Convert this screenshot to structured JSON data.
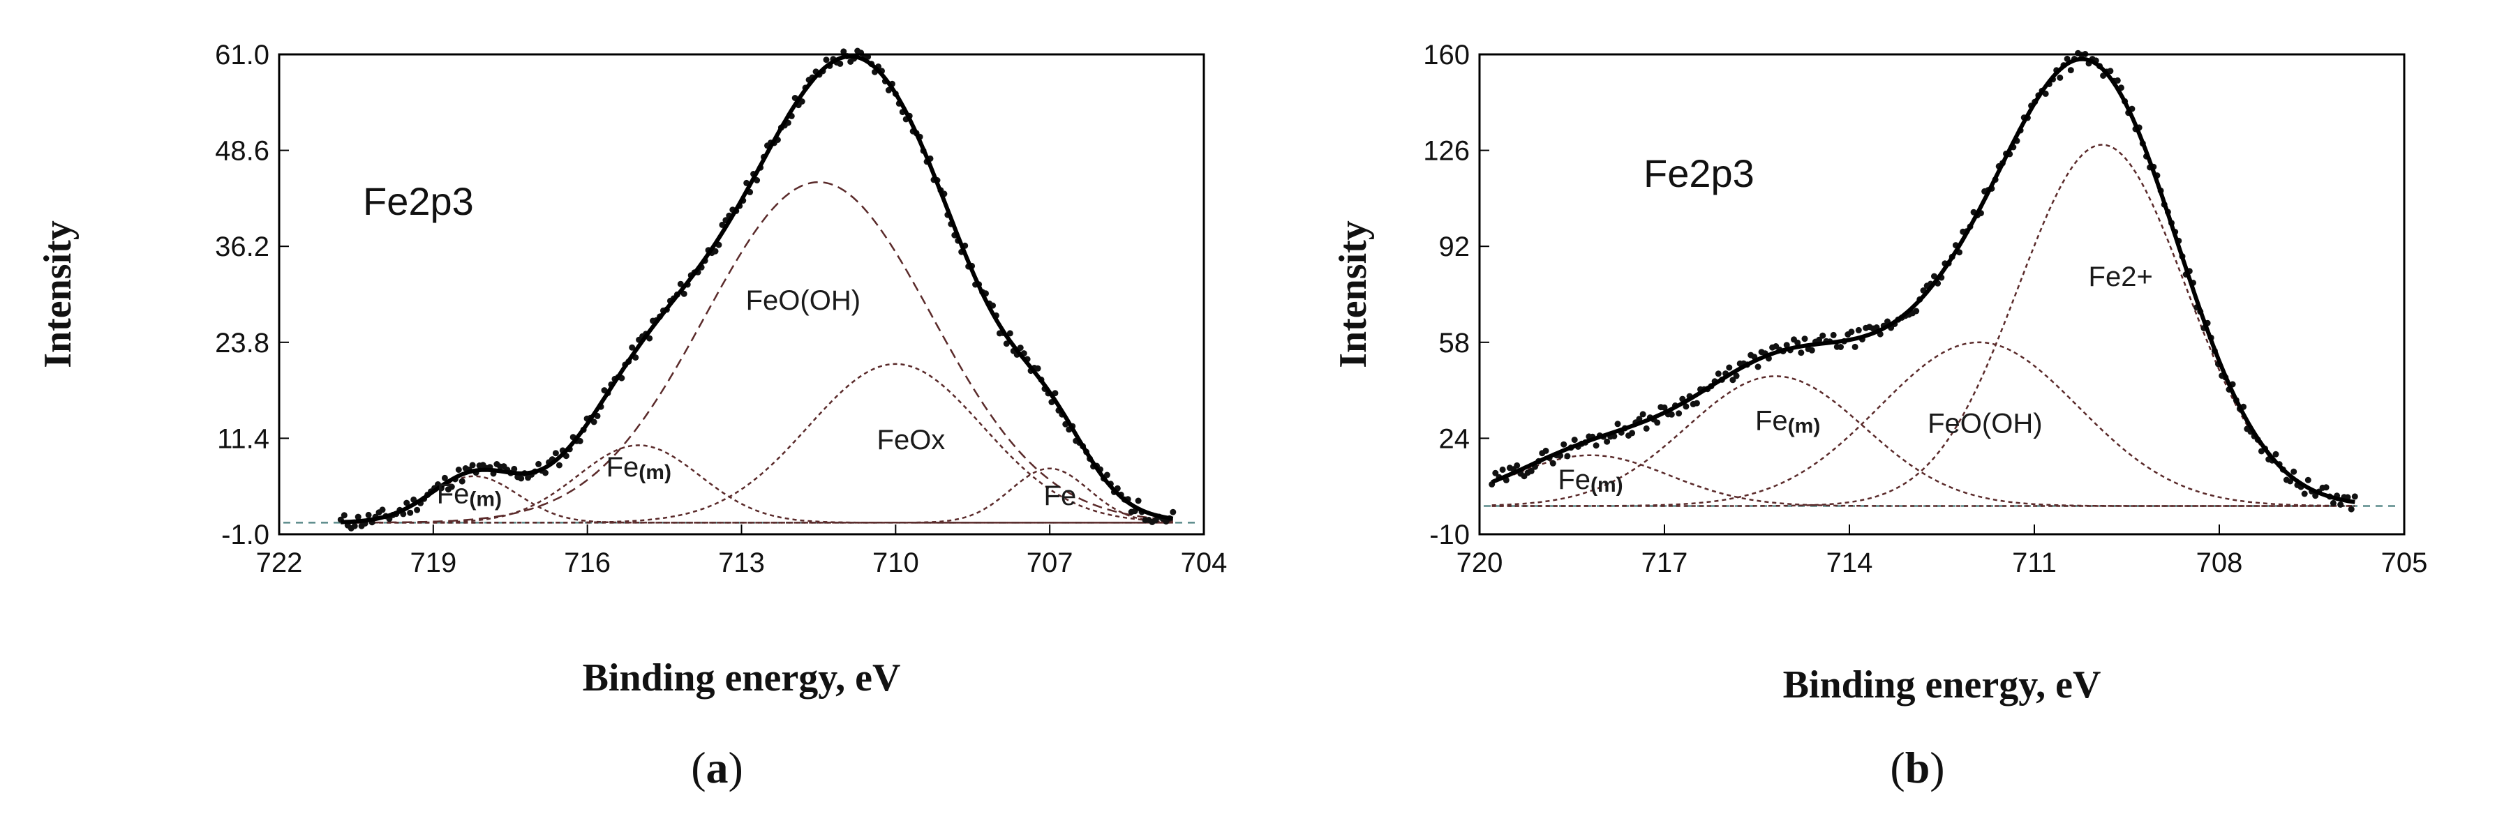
{
  "chart_data": [
    {
      "type": "line",
      "panel": "(a)",
      "caption_letter": "a",
      "title": "Fe2p3",
      "xlabel": "Binding energy, eV",
      "ylabel": "Intensity",
      "xlim": [
        722,
        704
      ],
      "ylim": [
        -1.0,
        61.0
      ],
      "xticks": [
        722,
        719,
        716,
        713,
        710,
        707,
        704
      ],
      "yticks": [
        -1.0,
        11.4,
        23.8,
        36.2,
        48.6,
        61.0
      ],
      "ytick_labels": [
        "-1.0",
        "11.4",
        "23.8",
        "36.2",
        "48.6",
        "61.0"
      ],
      "baseline": 0.5,
      "data_range": [
        720.8,
        704.6
      ],
      "components": [
        {
          "name": "Fe(m)",
          "center": 718.2,
          "height": 6.0,
          "fwhm": 2.0,
          "label": "Fe",
          "label_sub": "(m)",
          "label_pos": [
            718.3,
            3.0
          ]
        },
        {
          "name": "Fe(m)",
          "center": 715.0,
          "height": 10.0,
          "fwhm": 2.8,
          "label": "Fe",
          "label_sub": "(m)",
          "label_pos": [
            715.0,
            6.5
          ]
        },
        {
          "name": "FeO(OH)",
          "center": 711.5,
          "height": 44.0,
          "fwhm": 5.2,
          "label": "FeO(OH)",
          "label_pos": [
            711.8,
            28.0
          ]
        },
        {
          "name": "FeOx",
          "center": 710.0,
          "height": 20.5,
          "fwhm": 4.0,
          "label": "FeOx",
          "label_pos": [
            709.7,
            10.0
          ]
        },
        {
          "name": "Fe",
          "center": 707.0,
          "height": 7.0,
          "fwhm": 1.8,
          "label": "Fe",
          "label_pos": [
            706.8,
            2.8
          ]
        }
      ]
    },
    {
      "type": "line",
      "panel": "(b)",
      "caption_letter": "b",
      "title": "Fe2p3",
      "xlabel": "Binding energy, eV",
      "ylabel": "Intensity",
      "xlim": [
        720,
        705
      ],
      "ylim": [
        -10,
        160
      ],
      "xticks": [
        720,
        717,
        714,
        711,
        708,
        705
      ],
      "yticks": [
        -10,
        24,
        58,
        92,
        126,
        160
      ],
      "ytick_labels": [
        "-10",
        "24",
        "58",
        "92",
        "126",
        "160"
      ],
      "baseline": 0,
      "data_range": [
        719.8,
        705.8
      ],
      "components": [
        {
          "name": "Fe(m)",
          "center": 718.2,
          "height": 18.0,
          "fwhm": 3.0,
          "label": "Fe",
          "label_sub": "(m)",
          "label_pos": [
            718.2,
            6.0
          ]
        },
        {
          "name": "Fe(m)",
          "center": 715.2,
          "height": 46.0,
          "fwhm": 3.4,
          "label": "Fe",
          "label_sub": "(m)",
          "label_pos": [
            715.0,
            27.0
          ]
        },
        {
          "name": "FeO(OH)",
          "center": 711.9,
          "height": 58.0,
          "fwhm": 3.8,
          "label": "FeO(OH)",
          "label_pos": [
            711.8,
            26.0
          ]
        },
        {
          "name": "Fe2+",
          "center": 709.9,
          "height": 128.0,
          "fwhm": 3.2,
          "label": "Fe2+",
          "label_pos": [
            709.6,
            78.0
          ]
        }
      ]
    }
  ]
}
